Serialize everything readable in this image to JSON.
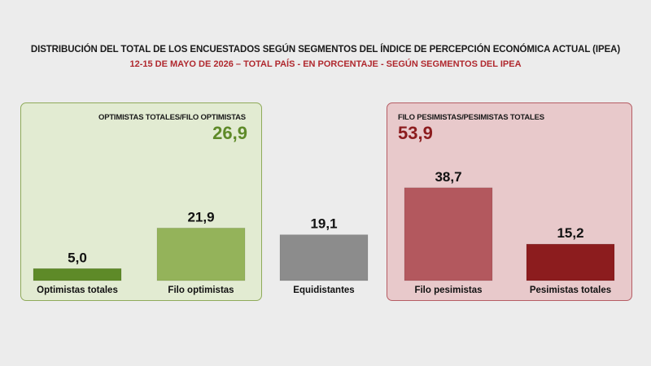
{
  "chart_data": {
    "type": "bar",
    "title": "DISTRIBUCIÓN DEL TOTAL DE LOS ENCUESTADOS SEGÚN SEGMENTOS DEL ÍNDICE DE PERCEPCIÓN ECONÓMICA ACTUAL (IPEA)",
    "subtitle": "12-15 DE MAYO DE 2026 – TOTAL PAÍS - EN PORCENTAJE - SEGÚN SEGMENTOS DEL IPEA",
    "categories": [
      "Optimistas totales",
      "Filo optimistas",
      "Equidistantes",
      "Filo pesimistas",
      "Pesimistas totales"
    ],
    "values": [
      5.0,
      21.9,
      19.1,
      38.7,
      15.2
    ],
    "value_labels": [
      "5,0",
      "21,9",
      "19,1",
      "38,7",
      "15,2"
    ],
    "colors": [
      "#5e8a28",
      "#94b35a",
      "#8c8c8c",
      "#b3585e",
      "#8c1c1e"
    ],
    "groups": [
      {
        "label": "OPTIMISTAS TOTALES/FILO OPTIMISTAS",
        "total": "26,9",
        "color": "#5e8a28"
      },
      {
        "label": "FILO PESIMISTAS/PESIMISTAS TOTALES",
        "total": "53,9",
        "color": "#8c1c1e"
      }
    ],
    "grid": false,
    "legend": "none"
  }
}
